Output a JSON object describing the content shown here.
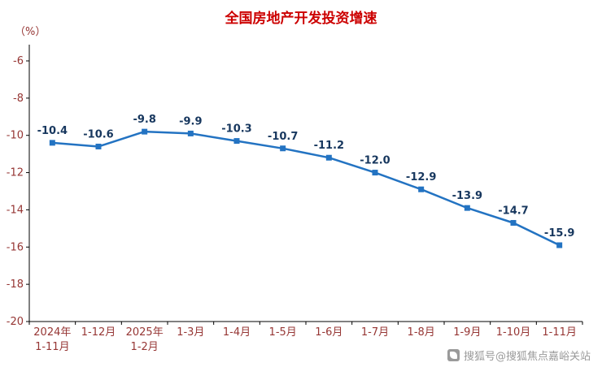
{
  "chart_data": {
    "type": "line",
    "title": "全国房地产开发投资增速",
    "unit_label": "（%）",
    "categories": [
      "2024年\n1-11月",
      "1-12月",
      "2025年\n1-2月",
      "1-3月",
      "1-4月",
      "1-5月",
      "1-6月",
      "1-7月",
      "1-8月",
      "1-9月",
      "1-10月",
      "1-11月"
    ],
    "values": [
      -10.4,
      -10.6,
      -9.8,
      -9.9,
      -10.3,
      -10.7,
      -11.2,
      -12.0,
      -12.9,
      -13.9,
      -14.7,
      -15.9
    ],
    "labels": [
      "-10.4",
      "-10.6",
      "-9.8",
      "-9.9",
      "-10.3",
      "-10.7",
      "-11.2",
      "-12.0",
      "-12.9",
      "-13.9",
      "-14.7",
      "-15.9"
    ],
    "yticks": [
      -6,
      -8,
      -10,
      -12,
      -14,
      -16,
      -18,
      -20
    ],
    "ylim": [
      -20,
      -6
    ],
    "grid": false,
    "legend": "none",
    "colors": {
      "line": "#2373C2",
      "marker": "#2373C2",
      "data_label": "#17375E",
      "axis_text": "#963634",
      "title": "#CC0000",
      "axis_line": "#000000",
      "watermark": "#9A9A9A"
    }
  },
  "watermark": {
    "text": "搜狐号@搜狐焦点嘉峪关站"
  }
}
